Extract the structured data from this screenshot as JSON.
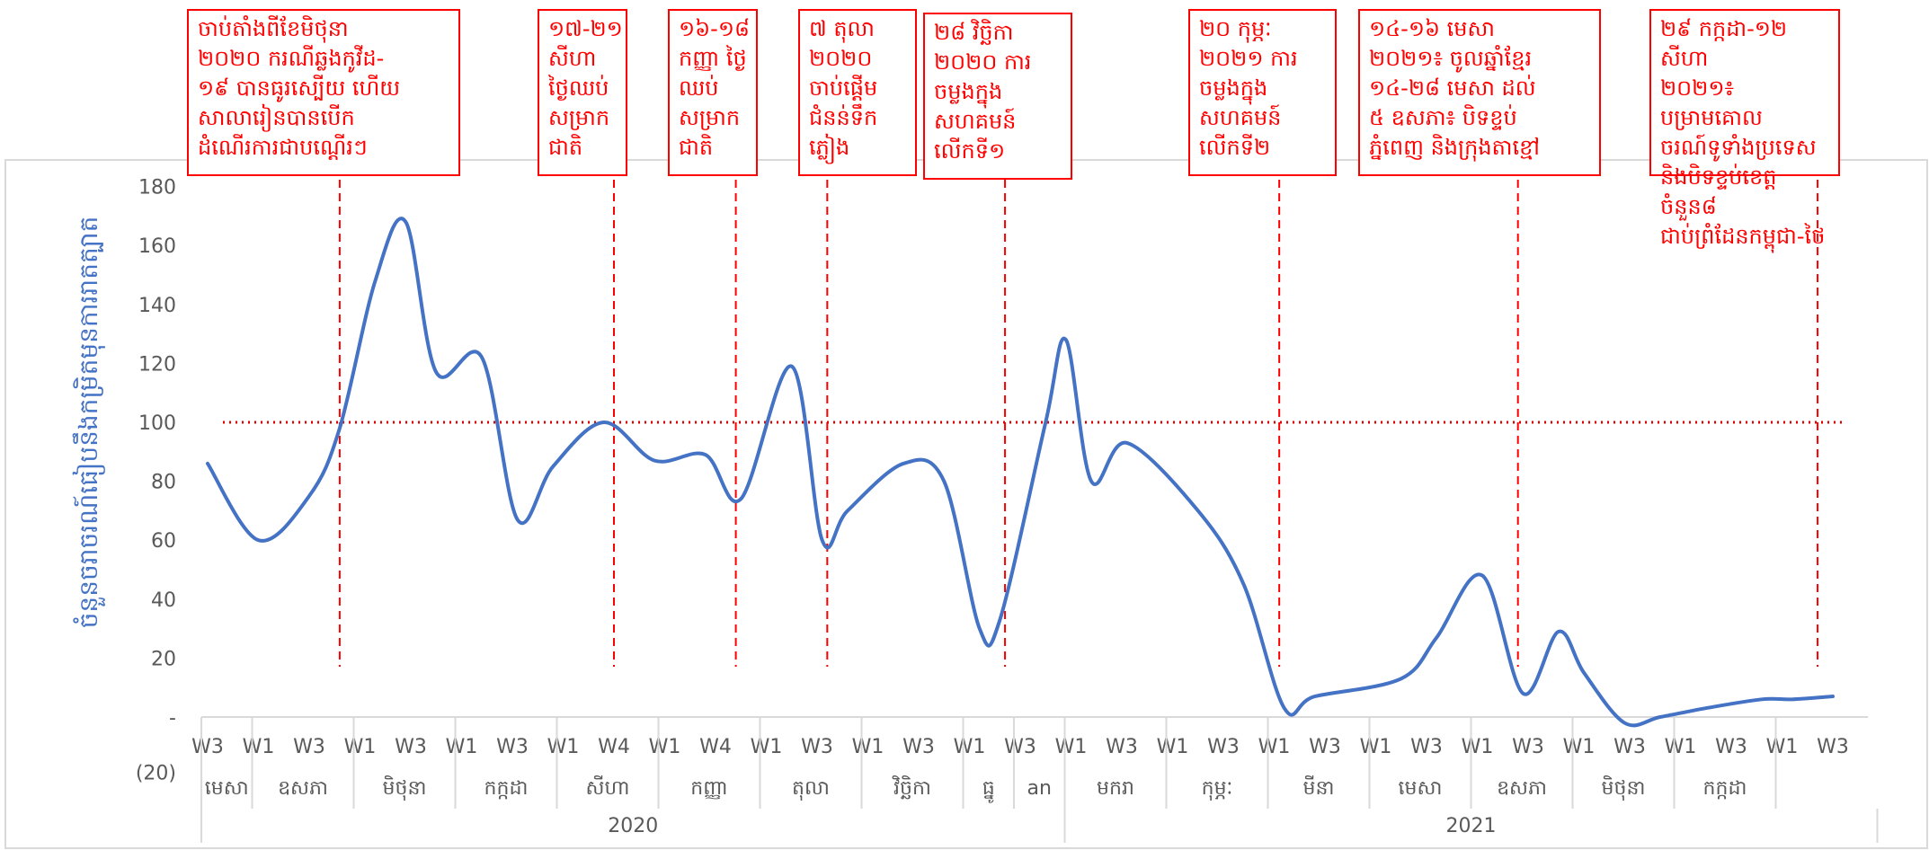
{
  "chart_data": {
    "type": "line",
    "ylabel": "ចំនួនចរាចរណ៍ធៀបនឹងកម្រិតមុនការរាតត្បាត",
    "ylim": [
      -20,
      180
    ],
    "y_ticks": [
      "(20)",
      "-",
      "20",
      "40",
      "60",
      "80",
      "100",
      "120",
      "140",
      "160",
      "180"
    ],
    "y_tick_values": [
      -20,
      0,
      20,
      40,
      60,
      80,
      100,
      120,
      140,
      160,
      180
    ],
    "reference_line": {
      "value": 100,
      "color": "#e00000",
      "style": "dotted"
    },
    "line_color": "#4472c4",
    "annotation_color": "#ff0000",
    "grid": false,
    "legend": "none",
    "week_labels": [
      "W3",
      "W1",
      "W3",
      "W1",
      "W3",
      "W1",
      "W3",
      "W1",
      "W4",
      "W1",
      "W4",
      "W1",
      "W3",
      "W1",
      "W3",
      "W1",
      "W3",
      "W1",
      "W3",
      "W1",
      "W3",
      "W1",
      "W3",
      "W1",
      "W3",
      "W1",
      "W3",
      "W1",
      "W3",
      "W1",
      "W3",
      "W1",
      "W3"
    ],
    "months": [
      {
        "label": "មេសា",
        "start": 0,
        "end": 1
      },
      {
        "label": "ឧសភា",
        "start": 1,
        "end": 3
      },
      {
        "label": "មិថុនា",
        "start": 3,
        "end": 5
      },
      {
        "label": "កក្កដា",
        "start": 5,
        "end": 7
      },
      {
        "label": "សីហា",
        "start": 7,
        "end": 9
      },
      {
        "label": "កញ្ញា",
        "start": 9,
        "end": 11
      },
      {
        "label": "តុលា",
        "start": 11,
        "end": 13
      },
      {
        "label": "វិច្ឆិកា",
        "start": 13,
        "end": 15
      },
      {
        "label": "ធ្នូ",
        "start": 15,
        "end": 16
      },
      {
        "label": "an",
        "start": 16,
        "end": 17
      },
      {
        "label": "មករា",
        "start": 17,
        "end": 19
      },
      {
        "label": "កុម្ភៈ",
        "start": 19,
        "end": 21
      },
      {
        "label": "មីនា",
        "start": 21,
        "end": 23
      },
      {
        "label": "មេសា",
        "start": 23,
        "end": 25
      },
      {
        "label": "ឧសភា",
        "start": 25,
        "end": 27
      },
      {
        "label": "មិថុនា",
        "start": 27,
        "end": 29
      },
      {
        "label": "កក្កដា",
        "start": 29,
        "end": 31
      }
    ],
    "years": [
      {
        "label": "2020",
        "start": 0,
        "end": 17
      },
      {
        "label": "2021",
        "start": 17,
        "end": 33
      }
    ],
    "series": [
      {
        "x": [
          0,
          1,
          2,
          2.6,
          3.3,
          3.9,
          4.5,
          5.4,
          6.1,
          6.8,
          7.8,
          8.8,
          9.8,
          10.5,
          11.5,
          12.1,
          12.6,
          13.7,
          14.5,
          15.2,
          15.6,
          16.5,
          16.9,
          17.4,
          18.1,
          19.5,
          20.4,
          21.2,
          21.8,
          23.5,
          24.2,
          25.1,
          25.9,
          26.6,
          27.1,
          27.9,
          28.6,
          29.5,
          30.6,
          31.2,
          32
        ],
        "y": [
          86,
          60,
          75,
          98,
          148,
          168,
          117,
          122,
          67,
          85,
          100,
          87,
          89,
          74,
          119,
          60,
          70,
          86,
          80,
          30,
          33,
          100,
          128,
          80,
          93,
          70,
          45,
          3,
          7,
          13,
          27,
          48,
          8,
          29,
          15,
          -2,
          0,
          3,
          6,
          6,
          7
        ]
      }
    ],
    "events": [
      {
        "x": 2.6,
        "text": "ចាប់តាំងពីខែមិថុនា\n២០២០ ករណីឆ្លងកូវីដ-\n១៩ បានធូរស្បើយ ហើយ\nសាលារៀនបានបើក\nដំណើរការជាបណ្តើរៗ"
      },
      {
        "x": 8.0,
        "text": "១៧-២១\nសីហា\nថ្ងៃឈប់\nសម្រាក\nជាតិ"
      },
      {
        "x": 10.4,
        "text": "១៦-១៨\nកញ្ញា ថ្ងៃ\nឈប់\nសម្រាក\nជាតិ"
      },
      {
        "x": 12.2,
        "text": "៧ តុលា\n២០២០\nចាប់ផ្តើម\nជំនន់ទឹក\nភ្លៀង"
      },
      {
        "x": 15.7,
        "text": "២៨ វិច្ឆិកា\n២០២០ ការ\nចម្លងក្នុង\nសហគមន៍\nលើកទី១"
      },
      {
        "x": 21.1,
        "text": "២០ កុម្ភៈ\n២០២១ ការ\nចម្លងក្នុង\nសហគមន៍\nលើកទី២"
      },
      {
        "x": 25.8,
        "text": "១៤-១៦ មេសា\n២០២១៖ ចូលឆ្នាំខ្មែរ\n១៤-២៨ មេសា ដល់\n៥ ឧសភា៖ បិទខ្ទប់\nភ្នំពេញ និងក្រុងតាខ្មៅ"
      },
      {
        "x": 31.7,
        "text": "២៩ កក្កដា-១២ សីហា\n២០២១៖ បម្រាមគោល\nចរណ៍ទូទាំងប្រទេស\nនិងបិទខ្ទប់ខេត្តចំនួន៨\nជាប់ព្រំដែនកម្ពុជា-ថៃ"
      }
    ]
  }
}
